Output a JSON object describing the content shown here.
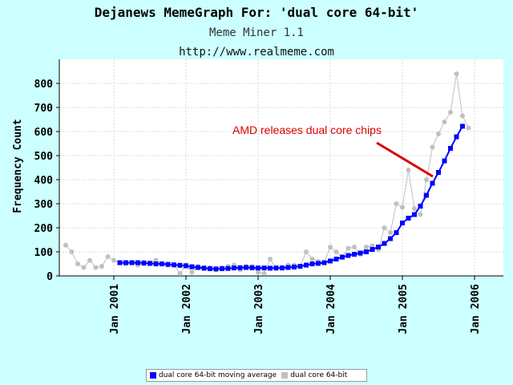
{
  "header": {
    "title": "Dejanews MemeGraph For: 'dual core 64-bit'",
    "subtitle": "Meme Miner 1.1",
    "url": "http://www.realmeme.com"
  },
  "colors": {
    "background": "#ccffff",
    "plot_background": "#ffffff",
    "moving_average": "#0000ff",
    "raw": "#c0c0c0",
    "annotation": "#dd0000"
  },
  "chart_data": {
    "type": "line",
    "title": "Dejanews MemeGraph For: 'dual core 64-bit'",
    "xlabel": "",
    "ylabel": "Frequency Count",
    "ylim": [
      0,
      900
    ],
    "yticks": [
      0,
      100,
      200,
      300,
      400,
      500,
      600,
      700,
      800
    ],
    "grid": true,
    "x_start_month": "2000-05",
    "xticks": [
      {
        "label": "Jan 2001",
        "index": 8
      },
      {
        "label": "Jan 2002",
        "index": 20
      },
      {
        "label": "Jan 2003",
        "index": 32
      },
      {
        "label": "Jan 2004",
        "index": 44
      },
      {
        "label": "Jan 2005",
        "index": 56
      },
      {
        "label": "Jan 2006",
        "index": 68
      }
    ],
    "legend_position": "bottom",
    "series": [
      {
        "name": "dual core 64-bit moving average",
        "marker": "square",
        "start_index": 9,
        "values": [
          55,
          55,
          55,
          55,
          54,
          52,
          50,
          50,
          48,
          46,
          44,
          42,
          38,
          35,
          32,
          30,
          29,
          30,
          31,
          33,
          34,
          35,
          34,
          33,
          33,
          32,
          33,
          33,
          35,
          37,
          40,
          45,
          50,
          52,
          55,
          62,
          70,
          78,
          85,
          90,
          95,
          100,
          110,
          120,
          135,
          155,
          180,
          220,
          240,
          255,
          290,
          335,
          385,
          430,
          478,
          530,
          578,
          622
        ]
      },
      {
        "name": "dual core 64-bit",
        "marker": "circle",
        "start_index": 0,
        "values": [
          128,
          100,
          50,
          35,
          65,
          35,
          40,
          80,
          65,
          55,
          50,
          55,
          45,
          50,
          55,
          65,
          50,
          45,
          45,
          10,
          45,
          15,
          40,
          35,
          35,
          25,
          35,
          40,
          45,
          25,
          40,
          40,
          15,
          10,
          70,
          30,
          35,
          45,
          45,
          40,
          100,
          70,
          60,
          55,
          120,
          100,
          80,
          115,
          120,
          90,
          120,
          125,
          110,
          200,
          180,
          300,
          285,
          440,
          280,
          255,
          400,
          535,
          590,
          640,
          680,
          840,
          665,
          615
        ]
      }
    ],
    "annotations": [
      {
        "text": "AMD releases dual core chips",
        "color": "#dd0000"
      }
    ]
  }
}
